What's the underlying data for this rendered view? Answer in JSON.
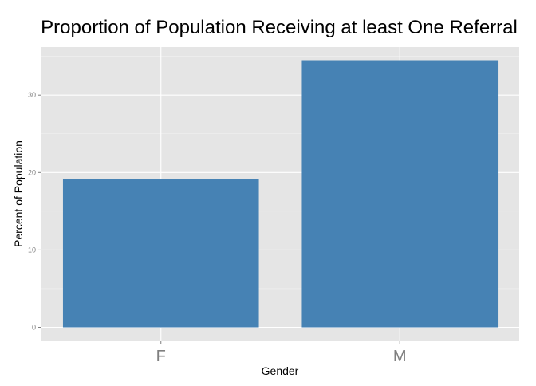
{
  "chart_data": {
    "type": "bar",
    "title": "Proportion of Population Receiving at least One Referral",
    "xlabel": "Gender",
    "ylabel": "Percent of Population",
    "categories": [
      "F",
      "M"
    ],
    "values": [
      19.2,
      34.5
    ],
    "ylim": [
      -1.7,
      36.2
    ],
    "yticks": [
      0,
      10,
      20,
      30
    ],
    "grid": true,
    "bar_color": "#4682B4",
    "panel_color": "#E5E5E5",
    "grid_color": "#FFFFFF"
  }
}
